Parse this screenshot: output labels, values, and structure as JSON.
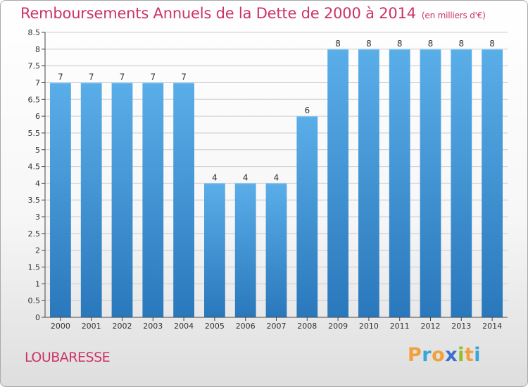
{
  "header": {
    "title": "Remboursements Annuels de la Dette de 2000 à 2014",
    "unit": "(en milliers d'€)"
  },
  "commune": "LOUBARESSE",
  "logo": {
    "text": "Proxiti",
    "letters": [
      "P",
      "r",
      "o",
      "x",
      "i",
      "t",
      "i"
    ],
    "letter_colors": [
      "#f2a03a",
      "#39a6d6",
      "#f2a03a",
      "#3a6fcf",
      "#8fbf2a",
      "#f2a03a",
      "#39a6d6"
    ]
  },
  "chart_data": {
    "type": "bar",
    "title": "Remboursements Annuels de la Dette de 2000 à 2014",
    "unit": "(en milliers d'€)",
    "categories": [
      "2000",
      "2001",
      "2002",
      "2003",
      "2004",
      "2005",
      "2006",
      "2007",
      "2008",
      "2009",
      "2010",
      "2011",
      "2012",
      "2013",
      "2014"
    ],
    "values": [
      7,
      7,
      7,
      7,
      7,
      4,
      4,
      4,
      6,
      8,
      8,
      8,
      8,
      8,
      8
    ],
    "data_labels": [
      "7",
      "7",
      "7",
      "7",
      "7",
      "4",
      "4",
      "4",
      "6",
      "8",
      "8",
      "8",
      "8",
      "8",
      "8"
    ],
    "ylim": [
      0,
      8.5
    ],
    "yticks": [
      "0",
      "0.5",
      "1",
      "1.5",
      "2",
      "2.5",
      "3",
      "3.5",
      "4",
      "4.5",
      "5",
      "5.5",
      "6",
      "6.5",
      "7",
      "7.5",
      "8",
      "8.5"
    ],
    "grid": true,
    "colors": {
      "bar_light": "#5aaee8",
      "bar_dark": "#2a78bc",
      "grid": "#cccccc",
      "axis": "#444444",
      "text": "#333333"
    }
  }
}
